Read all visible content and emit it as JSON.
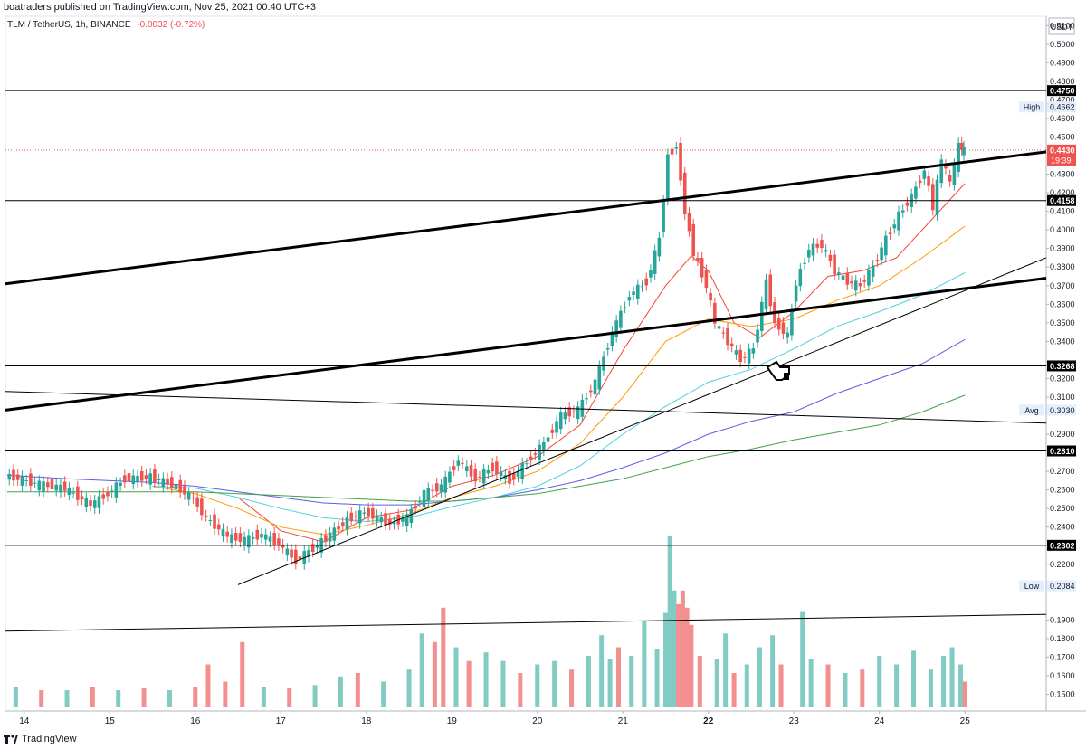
{
  "header": {
    "text": "boatraders published on TradingView.com, Nov 25, 2021 00:40 UTC+3"
  },
  "symbol": {
    "name": "TLM / TetherUS, 1h, BINANCE",
    "change": "-0.0032 (-0.72%)"
  },
  "footer": {
    "brand": "TradingView"
  },
  "chart_data": {
    "type": "line",
    "currency": "USDT",
    "ylim": [
      0.141,
      0.515
    ],
    "y_ticks": [
      "0.5100",
      "0.5000",
      "0.4900",
      "0.4800",
      "0.4700",
      "0.4600",
      "0.4500",
      "0.4300",
      "0.4200",
      "0.4100",
      "0.4000",
      "0.3900",
      "0.3800",
      "0.3700",
      "0.3600",
      "0.3500",
      "0.3400",
      "0.3200",
      "0.3100",
      "0.2900",
      "0.2700",
      "0.2600",
      "0.2500",
      "0.2400",
      "0.2200",
      "0.1900",
      "0.1800",
      "0.1700",
      "0.1600",
      "0.1500"
    ],
    "x_ticks": [
      {
        "label": "14",
        "x": 14
      },
      {
        "label": "15",
        "x": 15
      },
      {
        "label": "16",
        "x": 16
      },
      {
        "label": "17",
        "x": 17
      },
      {
        "label": "18",
        "x": 18
      },
      {
        "label": "19",
        "x": 19
      },
      {
        "label": "20",
        "x": 20
      },
      {
        "label": "21",
        "x": 21
      },
      {
        "label": "22",
        "x": 22,
        "bold": true
      },
      {
        "label": "23",
        "x": 23
      },
      {
        "label": "24",
        "x": 24
      },
      {
        "label": "25",
        "x": 25
      }
    ],
    "xlim": [
      13.78,
      25.95
    ],
    "price_levels": [
      {
        "value": 0.475,
        "label": "0.4750"
      },
      {
        "value": 0.4158,
        "label": "0.4158"
      },
      {
        "value": 0.3268,
        "label": "0.3268"
      },
      {
        "value": 0.281,
        "label": "0.2810"
      },
      {
        "value": 0.2302,
        "label": "0.2302"
      }
    ],
    "high": {
      "label": "High",
      "value": "0.4662"
    },
    "low": {
      "label": "Low",
      "value": "0.2084"
    },
    "avg": {
      "label": "Avg",
      "value": "0.3030"
    },
    "last": {
      "value": "0.4430",
      "countdown": "19:39",
      "price": 0.443
    },
    "price_path": [
      [
        13.8,
        0.268
      ],
      [
        14.2,
        0.263
      ],
      [
        14.5,
        0.261
      ],
      [
        14.8,
        0.252
      ],
      [
        15.0,
        0.258
      ],
      [
        15.2,
        0.266
      ],
      [
        15.5,
        0.267
      ],
      [
        15.8,
        0.262
      ],
      [
        16.0,
        0.255
      ],
      [
        16.15,
        0.245
      ],
      [
        16.4,
        0.235
      ],
      [
        16.6,
        0.233
      ],
      [
        16.8,
        0.236
      ],
      [
        17.0,
        0.231
      ],
      [
        17.2,
        0.222
      ],
      [
        17.5,
        0.232
      ],
      [
        17.8,
        0.244
      ],
      [
        18.0,
        0.248
      ],
      [
        18.3,
        0.242
      ],
      [
        18.5,
        0.245
      ],
      [
        18.7,
        0.258
      ],
      [
        18.9,
        0.262
      ],
      [
        19.1,
        0.276
      ],
      [
        19.3,
        0.266
      ],
      [
        19.5,
        0.272
      ],
      [
        19.7,
        0.265
      ],
      [
        19.9,
        0.275
      ],
      [
        20.1,
        0.285
      ],
      [
        20.3,
        0.3
      ],
      [
        20.5,
        0.303
      ],
      [
        20.7,
        0.318
      ],
      [
        20.9,
        0.345
      ],
      [
        21.1,
        0.365
      ],
      [
        21.3,
        0.372
      ],
      [
        21.45,
        0.395
      ],
      [
        21.55,
        0.44
      ],
      [
        21.65,
        0.445
      ],
      [
        21.75,
        0.41
      ],
      [
        21.85,
        0.388
      ],
      [
        22.0,
        0.37
      ],
      [
        22.1,
        0.35
      ],
      [
        22.25,
        0.34
      ],
      [
        22.4,
        0.33
      ],
      [
        22.55,
        0.336
      ],
      [
        22.7,
        0.372
      ],
      [
        22.8,
        0.35
      ],
      [
        22.95,
        0.343
      ],
      [
        23.05,
        0.372
      ],
      [
        23.2,
        0.39
      ],
      [
        23.35,
        0.392
      ],
      [
        23.5,
        0.378
      ],
      [
        23.65,
        0.372
      ],
      [
        23.8,
        0.37
      ],
      [
        23.95,
        0.38
      ],
      [
        24.1,
        0.395
      ],
      [
        24.25,
        0.408
      ],
      [
        24.4,
        0.418
      ],
      [
        24.55,
        0.432
      ],
      [
        24.65,
        0.412
      ],
      [
        24.75,
        0.438
      ],
      [
        24.85,
        0.425
      ],
      [
        24.95,
        0.445
      ],
      [
        25.0,
        0.443
      ]
    ],
    "moving_averages": [
      {
        "color": "#f44336",
        "values": [
          [
            16.5,
            0.256
          ],
          [
            17.0,
            0.238
          ],
          [
            17.5,
            0.232
          ],
          [
            18.0,
            0.245
          ],
          [
            18.5,
            0.249
          ],
          [
            19.0,
            0.262
          ],
          [
            19.5,
            0.268
          ],
          [
            20.0,
            0.278
          ],
          [
            20.5,
            0.295
          ],
          [
            21.0,
            0.335
          ],
          [
            21.5,
            0.37
          ],
          [
            21.8,
            0.386
          ],
          [
            22.0,
            0.378
          ],
          [
            22.3,
            0.35
          ],
          [
            22.6,
            0.342
          ],
          [
            23.0,
            0.356
          ],
          [
            23.4,
            0.375
          ],
          [
            23.8,
            0.378
          ],
          [
            24.2,
            0.385
          ],
          [
            24.6,
            0.405
          ],
          [
            25.0,
            0.425
          ]
        ]
      },
      {
        "color": "#ff9800",
        "values": [
          [
            15.5,
            0.262
          ],
          [
            16.0,
            0.258
          ],
          [
            16.5,
            0.25
          ],
          [
            17.0,
            0.24
          ],
          [
            17.5,
            0.236
          ],
          [
            18.0,
            0.241
          ],
          [
            18.5,
            0.247
          ],
          [
            19.0,
            0.256
          ],
          [
            19.5,
            0.262
          ],
          [
            20.0,
            0.27
          ],
          [
            20.5,
            0.285
          ],
          [
            21.0,
            0.31
          ],
          [
            21.5,
            0.34
          ],
          [
            22.0,
            0.352
          ],
          [
            22.5,
            0.348
          ],
          [
            23.0,
            0.352
          ],
          [
            23.5,
            0.362
          ],
          [
            24.0,
            0.37
          ],
          [
            24.5,
            0.385
          ],
          [
            25.0,
            0.402
          ]
        ]
      },
      {
        "color": "#4dd0e1",
        "values": [
          [
            15.5,
            0.262
          ],
          [
            16.0,
            0.261
          ],
          [
            16.5,
            0.256
          ],
          [
            17.0,
            0.25
          ],
          [
            17.5,
            0.245
          ],
          [
            18.0,
            0.243
          ],
          [
            18.5,
            0.245
          ],
          [
            19.0,
            0.251
          ],
          [
            19.5,
            0.256
          ],
          [
            20.0,
            0.262
          ],
          [
            20.5,
            0.273
          ],
          [
            21.0,
            0.29
          ],
          [
            21.5,
            0.305
          ],
          [
            22.0,
            0.318
          ],
          [
            22.5,
            0.325
          ],
          [
            23.0,
            0.336
          ],
          [
            23.5,
            0.348
          ],
          [
            24.0,
            0.356
          ],
          [
            24.5,
            0.365
          ],
          [
            25.0,
            0.377
          ]
        ]
      },
      {
        "color": "#5c5ce6",
        "values": [
          [
            13.8,
            0.268
          ],
          [
            14.5,
            0.266
          ],
          [
            15.0,
            0.265
          ],
          [
            15.5,
            0.264
          ],
          [
            16.0,
            0.262
          ],
          [
            16.5,
            0.259
          ],
          [
            17.0,
            0.256
          ],
          [
            17.5,
            0.253
          ],
          [
            18.0,
            0.252
          ],
          [
            18.5,
            0.252
          ],
          [
            19.0,
            0.254
          ],
          [
            19.5,
            0.256
          ],
          [
            20.0,
            0.26
          ],
          [
            20.5,
            0.265
          ],
          [
            21.0,
            0.272
          ],
          [
            21.5,
            0.28
          ],
          [
            22.0,
            0.29
          ],
          [
            22.5,
            0.297
          ],
          [
            23.0,
            0.302
          ],
          [
            23.5,
            0.312
          ],
          [
            24.0,
            0.32
          ],
          [
            24.5,
            0.328
          ],
          [
            25.0,
            0.341
          ]
        ]
      },
      {
        "color": "#43a047",
        "values": [
          [
            13.8,
            0.259
          ],
          [
            14.5,
            0.259
          ],
          [
            15.0,
            0.259
          ],
          [
            15.5,
            0.259
          ],
          [
            16.0,
            0.259
          ],
          [
            16.5,
            0.258
          ],
          [
            17.0,
            0.257
          ],
          [
            17.5,
            0.256
          ],
          [
            18.0,
            0.255
          ],
          [
            18.5,
            0.254
          ],
          [
            19.0,
            0.254
          ],
          [
            19.5,
            0.256
          ],
          [
            20.0,
            0.258
          ],
          [
            20.5,
            0.262
          ],
          [
            21.0,
            0.266
          ],
          [
            21.5,
            0.272
          ],
          [
            22.0,
            0.278
          ],
          [
            22.5,
            0.282
          ],
          [
            23.0,
            0.287
          ],
          [
            23.5,
            0.291
          ],
          [
            24.0,
            0.295
          ],
          [
            24.5,
            0.302
          ],
          [
            25.0,
            0.311
          ]
        ]
      }
    ],
    "trendlines": [
      {
        "from": [
          13.78,
          0.371
        ],
        "to": [
          25.95,
          0.442
        ],
        "width": 3
      },
      {
        "from": [
          13.78,
          0.303
        ],
        "to": [
          25.95,
          0.374
        ],
        "width": 3
      },
      {
        "from": [
          16.5,
          0.209
        ],
        "to": [
          25.95,
          0.385
        ],
        "width": 1
      },
      {
        "from": [
          13.78,
          0.313
        ],
        "to": [
          25.95,
          0.296
        ],
        "width": 1
      },
      {
        "from": [
          13.78,
          0.184
        ],
        "to": [
          25.95,
          0.193
        ],
        "width": 1
      }
    ],
    "volume": {
      "max_ratio": 1.0,
      "bars": [
        [
          13.9,
          0.12,
          "up"
        ],
        [
          14.2,
          0.1,
          "dn"
        ],
        [
          14.5,
          0.1,
          "up"
        ],
        [
          14.8,
          0.12,
          "dn"
        ],
        [
          15.1,
          0.1,
          "up"
        ],
        [
          15.4,
          0.11,
          "dn"
        ],
        [
          15.7,
          0.1,
          "up"
        ],
        [
          16.0,
          0.12,
          "dn"
        ],
        [
          16.15,
          0.25,
          "dn"
        ],
        [
          16.35,
          0.15,
          "dn"
        ],
        [
          16.55,
          0.38,
          "dn"
        ],
        [
          16.8,
          0.12,
          "up"
        ],
        [
          17.1,
          0.11,
          "dn"
        ],
        [
          17.4,
          0.13,
          "up"
        ],
        [
          17.7,
          0.18,
          "up"
        ],
        [
          17.9,
          0.2,
          "dn"
        ],
        [
          18.2,
          0.15,
          "up"
        ],
        [
          18.5,
          0.22,
          "up"
        ],
        [
          18.65,
          0.43,
          "up"
        ],
        [
          18.8,
          0.38,
          "dn"
        ],
        [
          18.9,
          0.58,
          "dn"
        ],
        [
          19.05,
          0.35,
          "up"
        ],
        [
          19.2,
          0.27,
          "dn"
        ],
        [
          19.4,
          0.32,
          "up"
        ],
        [
          19.6,
          0.27,
          "up"
        ],
        [
          19.8,
          0.2,
          "dn"
        ],
        [
          20.0,
          0.25,
          "up"
        ],
        [
          20.2,
          0.27,
          "up"
        ],
        [
          20.4,
          0.22,
          "dn"
        ],
        [
          20.6,
          0.3,
          "up"
        ],
        [
          20.75,
          0.42,
          "up"
        ],
        [
          20.85,
          0.28,
          "up"
        ],
        [
          20.95,
          0.35,
          "dn"
        ],
        [
          21.1,
          0.3,
          "up"
        ],
        [
          21.25,
          0.5,
          "up"
        ],
        [
          21.4,
          0.34,
          "up"
        ],
        [
          21.5,
          0.55,
          "up"
        ],
        [
          21.55,
          1.0,
          "up"
        ],
        [
          21.6,
          0.68,
          "up"
        ],
        [
          21.65,
          0.6,
          "dn"
        ],
        [
          21.7,
          0.68,
          "dn"
        ],
        [
          21.75,
          0.58,
          "dn"
        ],
        [
          21.8,
          0.48,
          "dn"
        ],
        [
          21.9,
          0.3,
          "dn"
        ],
        [
          22.1,
          0.28,
          "up"
        ],
        [
          22.2,
          0.43,
          "up"
        ],
        [
          22.3,
          0.2,
          "dn"
        ],
        [
          22.45,
          0.25,
          "up"
        ],
        [
          22.6,
          0.35,
          "up"
        ],
        [
          22.75,
          0.42,
          "up"
        ],
        [
          22.85,
          0.25,
          "dn"
        ],
        [
          23.1,
          0.56,
          "up"
        ],
        [
          23.2,
          0.28,
          "up"
        ],
        [
          23.4,
          0.25,
          "dn"
        ],
        [
          23.6,
          0.2,
          "up"
        ],
        [
          23.8,
          0.22,
          "dn"
        ],
        [
          24.0,
          0.3,
          "up"
        ],
        [
          24.2,
          0.25,
          "up"
        ],
        [
          24.4,
          0.33,
          "up"
        ],
        [
          24.6,
          0.22,
          "up"
        ],
        [
          24.75,
          0.3,
          "up"
        ],
        [
          24.85,
          0.35,
          "up"
        ],
        [
          24.95,
          0.25,
          "up"
        ],
        [
          25.0,
          0.15,
          "dn"
        ]
      ]
    }
  }
}
